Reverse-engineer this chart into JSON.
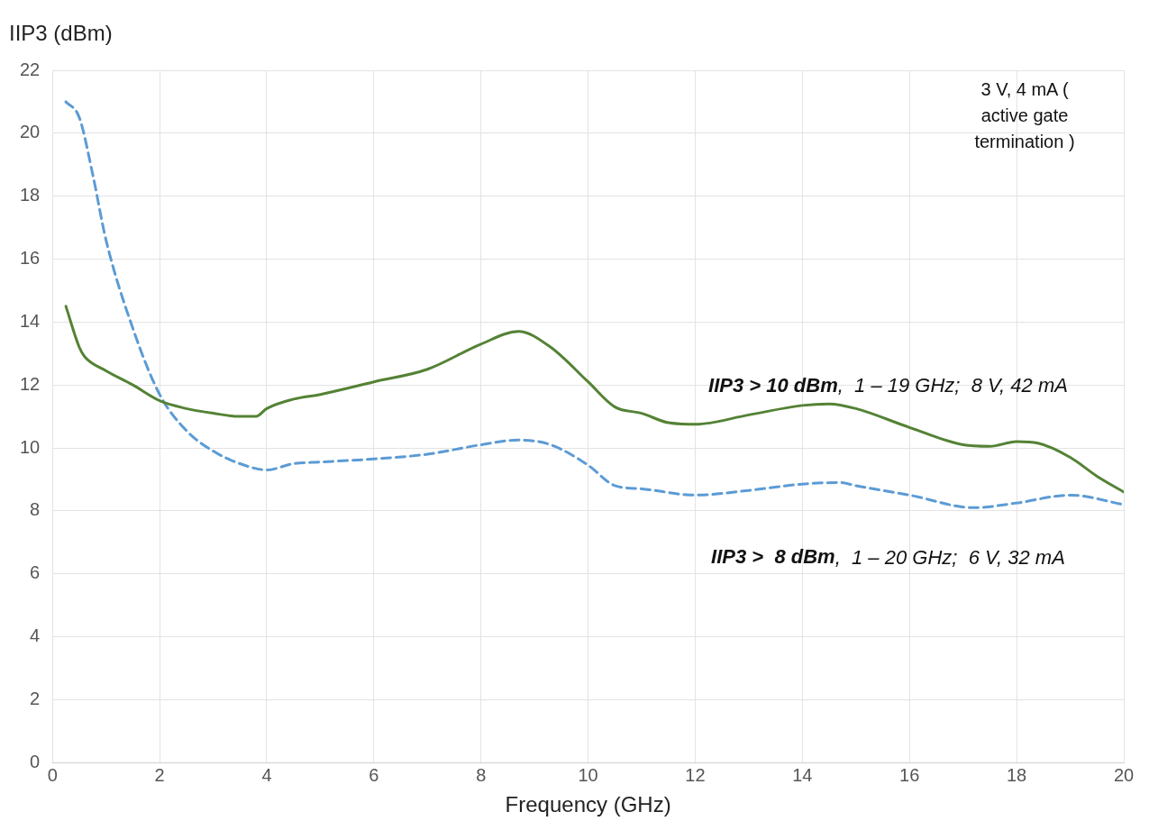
{
  "chart_data": {
    "type": "line",
    "xlabel": "Frequency (GHz)",
    "ylabel": "IIP3 (dBm)",
    "xlim": [
      0,
      20
    ],
    "ylim": [
      0,
      22
    ],
    "xticks": [
      0,
      2,
      4,
      6,
      8,
      10,
      12,
      14,
      16,
      18,
      20
    ],
    "yticks": [
      0,
      2,
      4,
      6,
      8,
      10,
      12,
      14,
      16,
      18,
      20,
      22
    ],
    "grid": true,
    "legend": false,
    "marker": "none",
    "annotations": [
      "3 V, 4 mA ( active gate termination )"
    ],
    "series": [
      {
        "name": "IIP3 > 10 dBm,  1 – 19 GHz;  8 V, 42 mA",
        "color": "#548235",
        "line_style": "solid",
        "x": [
          0.25,
          0.5,
          0.6,
          1,
          1.5,
          2,
          2.5,
          3,
          3.5,
          3.8,
          4,
          4.5,
          5,
          6,
          7,
          8,
          8.7,
          9.3,
          10,
          10.5,
          11,
          11.5,
          12,
          13,
          14,
          14.5,
          15,
          16,
          17,
          17.5,
          18,
          18.4,
          19,
          19.5,
          20
        ],
        "values": [
          14.5,
          13.2,
          12.9,
          12.45,
          12.0,
          11.5,
          11.25,
          11.1,
          11.0,
          11.0,
          11.25,
          11.55,
          11.7,
          12.1,
          12.5,
          13.3,
          13.7,
          13.2,
          12.1,
          11.3,
          11.1,
          10.8,
          10.75,
          11.05,
          11.35,
          11.4,
          11.25,
          10.65,
          10.1,
          10.05,
          10.2,
          10.15,
          9.7,
          9.1,
          8.6
        ]
      },
      {
        "name": "IIP3 >  8 dBm,  1 – 20 GHz;  6 V, 32 mA",
        "color": "#5b9bd5",
        "line_style": "dashed",
        "x": [
          0.25,
          0.5,
          0.75,
          1,
          1.5,
          2,
          2.5,
          3,
          3.5,
          4,
          4.5,
          5,
          6,
          7,
          8,
          8.7,
          9.3,
          10,
          10.5,
          11,
          12,
          13,
          14,
          14.7,
          15,
          16,
          17.2,
          18,
          19,
          20
        ],
        "values": [
          21.0,
          20.5,
          18.7,
          16.6,
          13.8,
          11.7,
          10.55,
          9.9,
          9.5,
          9.3,
          9.5,
          9.55,
          9.65,
          9.8,
          10.1,
          10.25,
          10.1,
          9.45,
          8.8,
          8.7,
          8.5,
          8.65,
          8.85,
          8.9,
          8.8,
          8.5,
          8.1,
          8.25,
          8.5,
          8.2
        ]
      }
    ]
  }
}
